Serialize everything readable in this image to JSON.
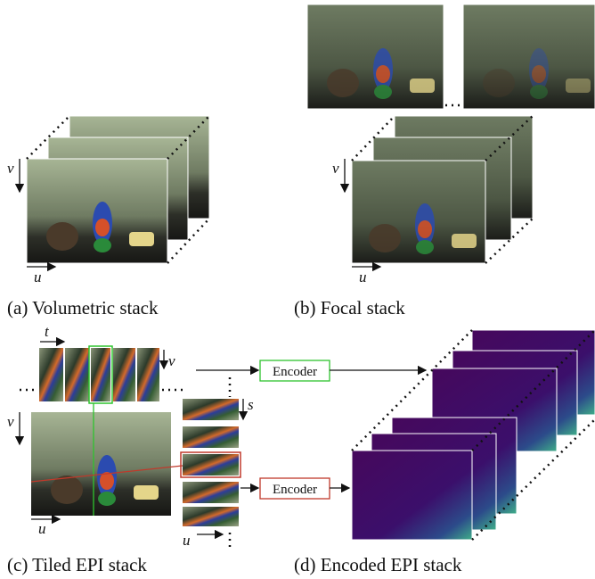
{
  "panels": [
    {
      "caption": "(a) Volumetric stack",
      "axes": [
        "u",
        "v"
      ]
    },
    {
      "caption": "(b) Focal stack",
      "axes": [
        "u",
        "v"
      ]
    },
    {
      "caption": "(c) Tiled EPI stack",
      "axes": [
        "t",
        "v",
        "v",
        "u",
        "s",
        "u"
      ]
    },
    {
      "caption": "(d) Encoded EPI stack"
    }
  ],
  "encoders": [
    "Encoder",
    "Encoder"
  ]
}
